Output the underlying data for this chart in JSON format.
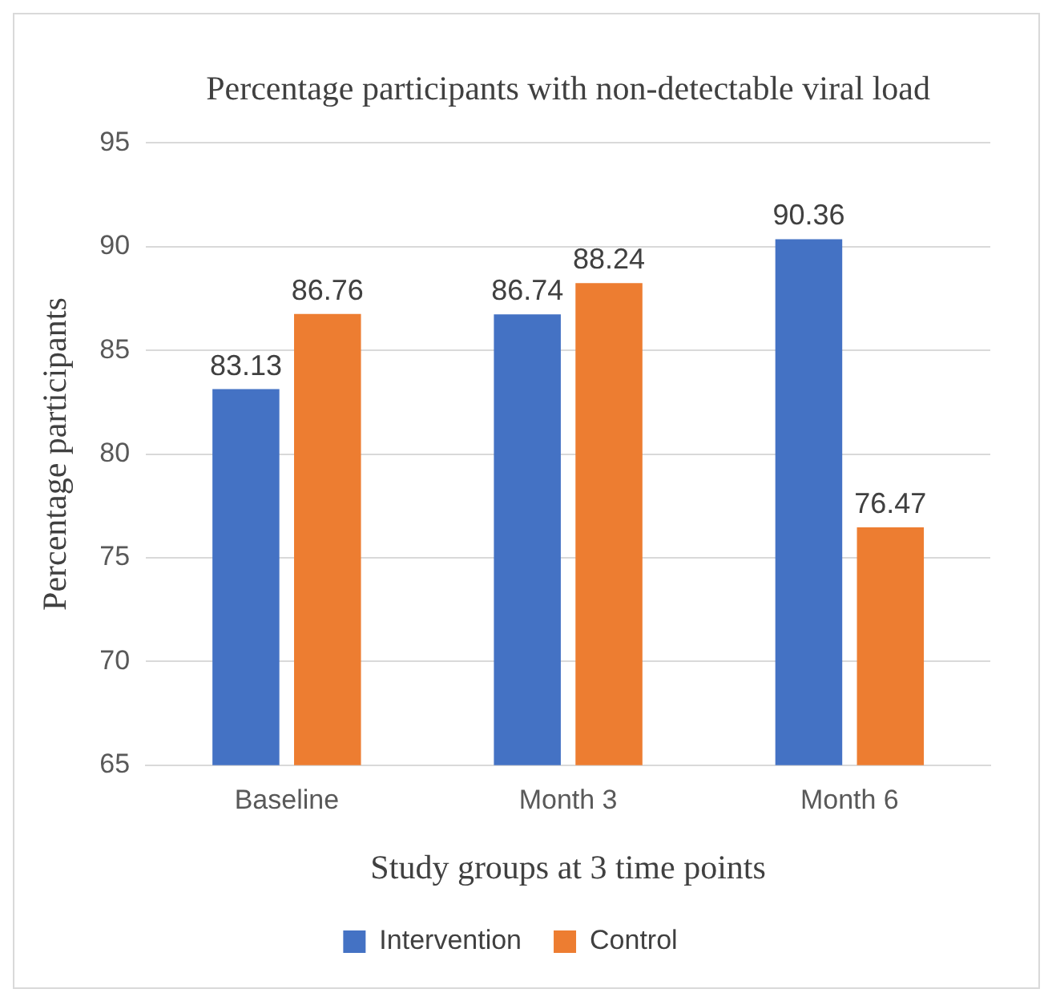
{
  "chart_data": {
    "type": "bar",
    "title": "Percentage participants with non-detectable viral load",
    "xlabel": "Study groups at 3 time points",
    "ylabel": "Percentage participants",
    "categories": [
      "Baseline",
      "Month 3",
      "Month 6"
    ],
    "series": [
      {
        "name": "Intervention",
        "color": "#4472c4",
        "values": [
          83.13,
          86.74,
          90.36
        ]
      },
      {
        "name": "Control",
        "color": "#ed7d31",
        "values": [
          86.76,
          88.24,
          76.47
        ]
      }
    ],
    "ylim": [
      65,
      95
    ],
    "yticks": [
      65,
      70,
      75,
      80,
      85,
      90,
      95
    ],
    "grid": "y",
    "legend": "bottom",
    "data_labels": true
  }
}
